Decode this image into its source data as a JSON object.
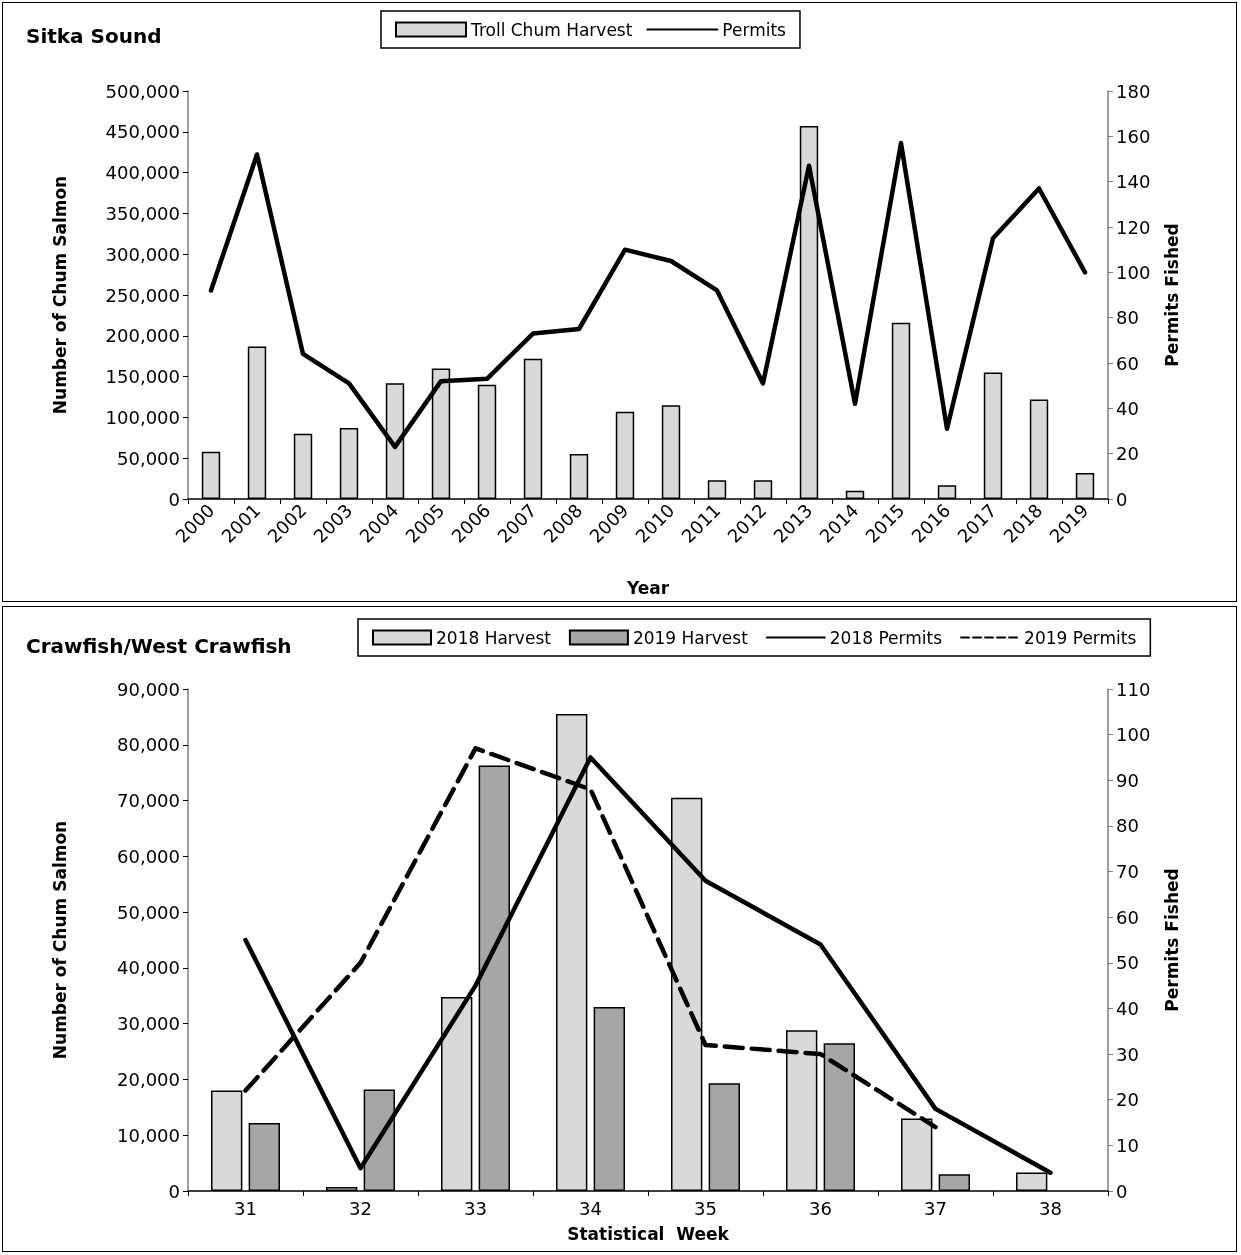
{
  "chart_data": [
    {
      "type": "bar",
      "title": "Sitka Sound",
      "xlabel": "Year",
      "ylabel": "Number of Chum Salmon",
      "y2label": "Permits Fished",
      "categories": [
        "2000",
        "2001",
        "2002",
        "2003",
        "2004",
        "2005",
        "2006",
        "2007",
        "2008",
        "2009",
        "2010",
        "2011",
        "2012",
        "2013",
        "2014",
        "2015",
        "2016",
        "2017",
        "2018",
        "2019"
      ],
      "series": [
        {
          "name": "Troll Chum Harvest",
          "color": "#d9d9d9",
          "values": [
            58000,
            187000,
            80000,
            87000,
            142000,
            160000,
            140000,
            172000,
            55000,
            107000,
            115000,
            23000,
            23000,
            457000,
            10000,
            216000,
            17000,
            155000,
            122000,
            32000
          ]
        },
        {
          "name": "Permits",
          "type": "line",
          "axis": "y2",
          "color": "#000000",
          "line_style": "solid",
          "values": [
            92,
            152,
            64,
            51,
            23,
            52,
            53,
            73,
            75,
            110,
            105,
            92,
            51,
            147,
            42,
            157,
            31,
            115,
            137,
            100
          ]
        }
      ],
      "ylim": [
        0,
        500000
      ],
      "yticks": [
        0,
        {
          "value": 50000,
          "label": "50,000"
        },
        {
          "value": 100000,
          "label": "100,000"
        },
        {
          "value": 150000,
          "label": "150,000"
        },
        {
          "value": 200000,
          "label": "200,000"
        },
        {
          "value": 250000,
          "label": "250,000"
        },
        {
          "value": 300000,
          "label": "300,000"
        },
        {
          "value": 350000,
          "label": "350,000"
        },
        {
          "value": 400000,
          "label": "400,000"
        },
        {
          "value": 450000,
          "label": "450,000"
        },
        {
          "value": 500000,
          "label": "500,000"
        }
      ],
      "y2lim": [
        0,
        180
      ],
      "y2ticks": [
        0,
        20,
        40,
        60,
        80,
        100,
        120,
        140,
        160,
        180
      ],
      "legend": "top",
      "grid": false
    },
    {
      "type": "bar",
      "title": "Crawfish/West Crawfish",
      "xlabel": "Statistical  Week",
      "ylabel": "Number of Chum Salmon",
      "y2label": "Permits Fished",
      "categories": [
        "31",
        "32",
        "33",
        "34",
        "35",
        "36",
        "37",
        "38"
      ],
      "series": [
        {
          "name": "2018 Harvest",
          "color": "#d9d9d9",
          "values": [
            18000,
            700,
            34800,
            85500,
            70500,
            28800,
            13000,
            3300
          ]
        },
        {
          "name": "2019 Harvest",
          "color": "#a6a6a6",
          "values": [
            12200,
            18200,
            76300,
            33000,
            19300,
            26500,
            3000,
            null
          ]
        },
        {
          "name": "2018 Permits",
          "type": "line",
          "axis": "y2",
          "color": "#000000",
          "line_style": "solid",
          "values": [
            55,
            5,
            45,
            95,
            68,
            54,
            18,
            4
          ]
        },
        {
          "name": "2019 Permits",
          "type": "line",
          "axis": "y2",
          "color": "#000000",
          "line_style": "dashed",
          "values": [
            22,
            50,
            97,
            88,
            32,
            30,
            14,
            null
          ]
        }
      ],
      "ylim": [
        0,
        90000
      ],
      "yticks": [
        0,
        {
          "value": 10000,
          "label": "10,000"
        },
        {
          "value": 20000,
          "label": "20,000"
        },
        {
          "value": 30000,
          "label": "30,000"
        },
        {
          "value": 40000,
          "label": "40,000"
        },
        {
          "value": 50000,
          "label": "50,000"
        },
        {
          "value": 60000,
          "label": "60,000"
        },
        {
          "value": 70000,
          "label": "70,000"
        },
        {
          "value": 80000,
          "label": "80,000"
        },
        {
          "value": 90000,
          "label": "90,000"
        }
      ],
      "y2lim": [
        0,
        110
      ],
      "y2ticks": [
        0,
        10,
        20,
        30,
        40,
        50,
        60,
        70,
        80,
        90,
        100,
        110
      ],
      "legend": "top",
      "grid": false
    }
  ]
}
